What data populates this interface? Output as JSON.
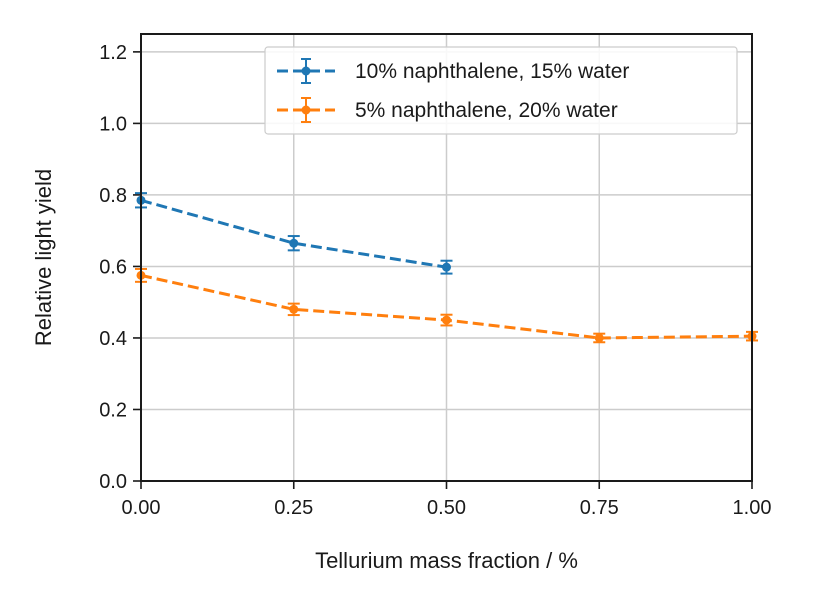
{
  "chart_data": {
    "type": "line",
    "title": "",
    "xlabel": "Tellurium mass fraction / %",
    "ylabel": "Relative light yield",
    "xlim": [
      0.0,
      1.0
    ],
    "ylim": [
      0.0,
      1.25
    ],
    "xticks": [
      0.0,
      0.25,
      0.5,
      0.75,
      1.0
    ],
    "xtick_labels": [
      "0.00",
      "0.25",
      "0.50",
      "0.75",
      "1.00"
    ],
    "yticks": [
      0.0,
      0.2,
      0.4,
      0.6,
      0.8,
      1.0,
      1.2
    ],
    "ytick_labels": [
      "0.0",
      "0.2",
      "0.4",
      "0.6",
      "0.8",
      "1.0",
      "1.2"
    ],
    "grid": true,
    "legend_position": "top-right",
    "series": [
      {
        "name": "10% naphthalene, 15% water",
        "color": "#1f77b4",
        "x": [
          0.0,
          0.25,
          0.5
        ],
        "values": [
          0.785,
          0.665,
          0.598
        ],
        "errors": [
          0.02,
          0.02,
          0.018
        ]
      },
      {
        "name": "5% naphthalene, 20% water",
        "color": "#ff7f0e",
        "x": [
          0.0,
          0.25,
          0.5,
          0.75,
          1.0
        ],
        "values": [
          0.575,
          0.48,
          0.45,
          0.4,
          0.405
        ],
        "errors": [
          0.018,
          0.016,
          0.015,
          0.012,
          0.012
        ]
      }
    ]
  }
}
